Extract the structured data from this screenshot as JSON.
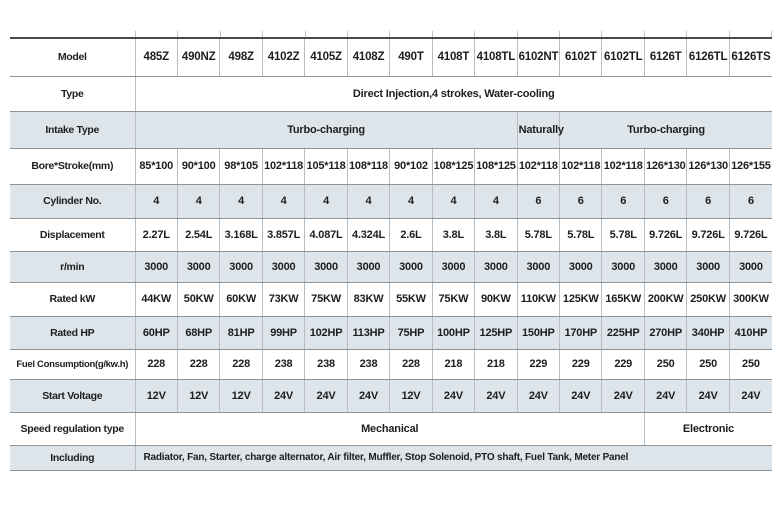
{
  "colors": {
    "shaded_row_bg": "#dde5eb",
    "plain_row_bg": "#ffffff",
    "text": "#1e1e1e",
    "border_top": "#4b4b4b",
    "border_horizontal": "#8f9396",
    "border_vertical": "#b6bcc1"
  },
  "chart_data": {
    "type": "table",
    "columns_count": 15,
    "rows": [
      {
        "key": "model",
        "label": "Model",
        "header": true,
        "cells": [
          "485Z",
          "490NZ",
          "498Z",
          "4102Z",
          "4105Z",
          "4108Z",
          "490T",
          "4108T",
          "4108TL",
          "6102NT",
          "6102T",
          "6102TL",
          "6126T",
          "6126TL",
          "6126TS"
        ]
      },
      {
        "key": "type",
        "label": "Type",
        "cells": [
          {
            "text": "Direct Injection,4 strokes, Water-cooling",
            "span": 15
          }
        ]
      },
      {
        "key": "intake-type",
        "label": "Intake Type",
        "shaded": true,
        "cells": [
          {
            "text": "Turbo-charging",
            "span": 9
          },
          {
            "text": "Naturally",
            "span": 1
          },
          {
            "text": "Turbo-charging",
            "span": 5
          }
        ]
      },
      {
        "key": "bore-stroke",
        "label": "Bore*Stroke(mm)",
        "cells": [
          "85*100",
          "90*100",
          "98*105",
          "102*118",
          "105*118",
          "108*118",
          "90*102",
          "108*125",
          "108*125",
          "102*118",
          "102*118",
          "102*118",
          "126*130",
          "126*130",
          "126*155"
        ]
      },
      {
        "key": "cylinder-no",
        "label": "Cylinder No.",
        "shaded": true,
        "cells": [
          "4",
          "4",
          "4",
          "4",
          "4",
          "4",
          "4",
          "4",
          "4",
          "6",
          "6",
          "6",
          "6",
          "6",
          "6"
        ]
      },
      {
        "key": "displacement",
        "label": "Displacement",
        "cells": [
          "2.27L",
          "2.54L",
          "3.168L",
          "3.857L",
          "4.087L",
          "4.324L",
          "2.6L",
          "3.8L",
          "3.8L",
          "5.78L",
          "5.78L",
          "5.78L",
          "9.726L",
          "9.726L",
          "9.726L"
        ]
      },
      {
        "key": "rpm",
        "label": "r/min",
        "shaded": true,
        "cells": [
          "3000",
          "3000",
          "3000",
          "3000",
          "3000",
          "3000",
          "3000",
          "3000",
          "3000",
          "3000",
          "3000",
          "3000",
          "3000",
          "3000",
          "3000"
        ]
      },
      {
        "key": "rated-kw",
        "label": "Rated kW",
        "cells": [
          "44KW",
          "50KW",
          "60KW",
          "73KW",
          "75KW",
          "83KW",
          "55KW",
          "75KW",
          "90KW",
          "110KW",
          "125KW",
          "165KW",
          "200KW",
          "250KW",
          "300KW"
        ]
      },
      {
        "key": "rated-hp",
        "label": "Rated HP",
        "shaded": true,
        "cells": [
          "60HP",
          "68HP",
          "81HP",
          "99HP",
          "102HP",
          "113HP",
          "75HP",
          "100HP",
          "125HP",
          "150HP",
          "170HP",
          "225HP",
          "270HP",
          "340HP",
          "410HP"
        ]
      },
      {
        "key": "fuel-consumption",
        "label": "Fuel Consumption(g/kw.h)",
        "cells": [
          "228",
          "228",
          "228",
          "238",
          "238",
          "238",
          "228",
          "218",
          "218",
          "229",
          "229",
          "229",
          "250",
          "250",
          "250"
        ]
      },
      {
        "key": "start-voltage",
        "label": "Start Voltage",
        "shaded": true,
        "cells": [
          "12V",
          "12V",
          "12V",
          "24V",
          "24V",
          "24V",
          "12V",
          "24V",
          "24V",
          "24V",
          "24V",
          "24V",
          "24V",
          "24V",
          "24V"
        ]
      },
      {
        "key": "speed-regulation",
        "label": "Speed regulation type",
        "cells": [
          {
            "text": "Mechanical",
            "span": 12
          },
          {
            "text": "Electronic",
            "span": 3
          }
        ]
      },
      {
        "key": "including",
        "label": "Including",
        "shaded": true,
        "align": "left",
        "cells": [
          {
            "text": "Radiator, Fan, Starter, charge alternator, Air filter, Muffler, Stop Solenoid, PTO shaft, Fuel Tank, Meter Panel",
            "span": 15
          }
        ]
      }
    ]
  }
}
